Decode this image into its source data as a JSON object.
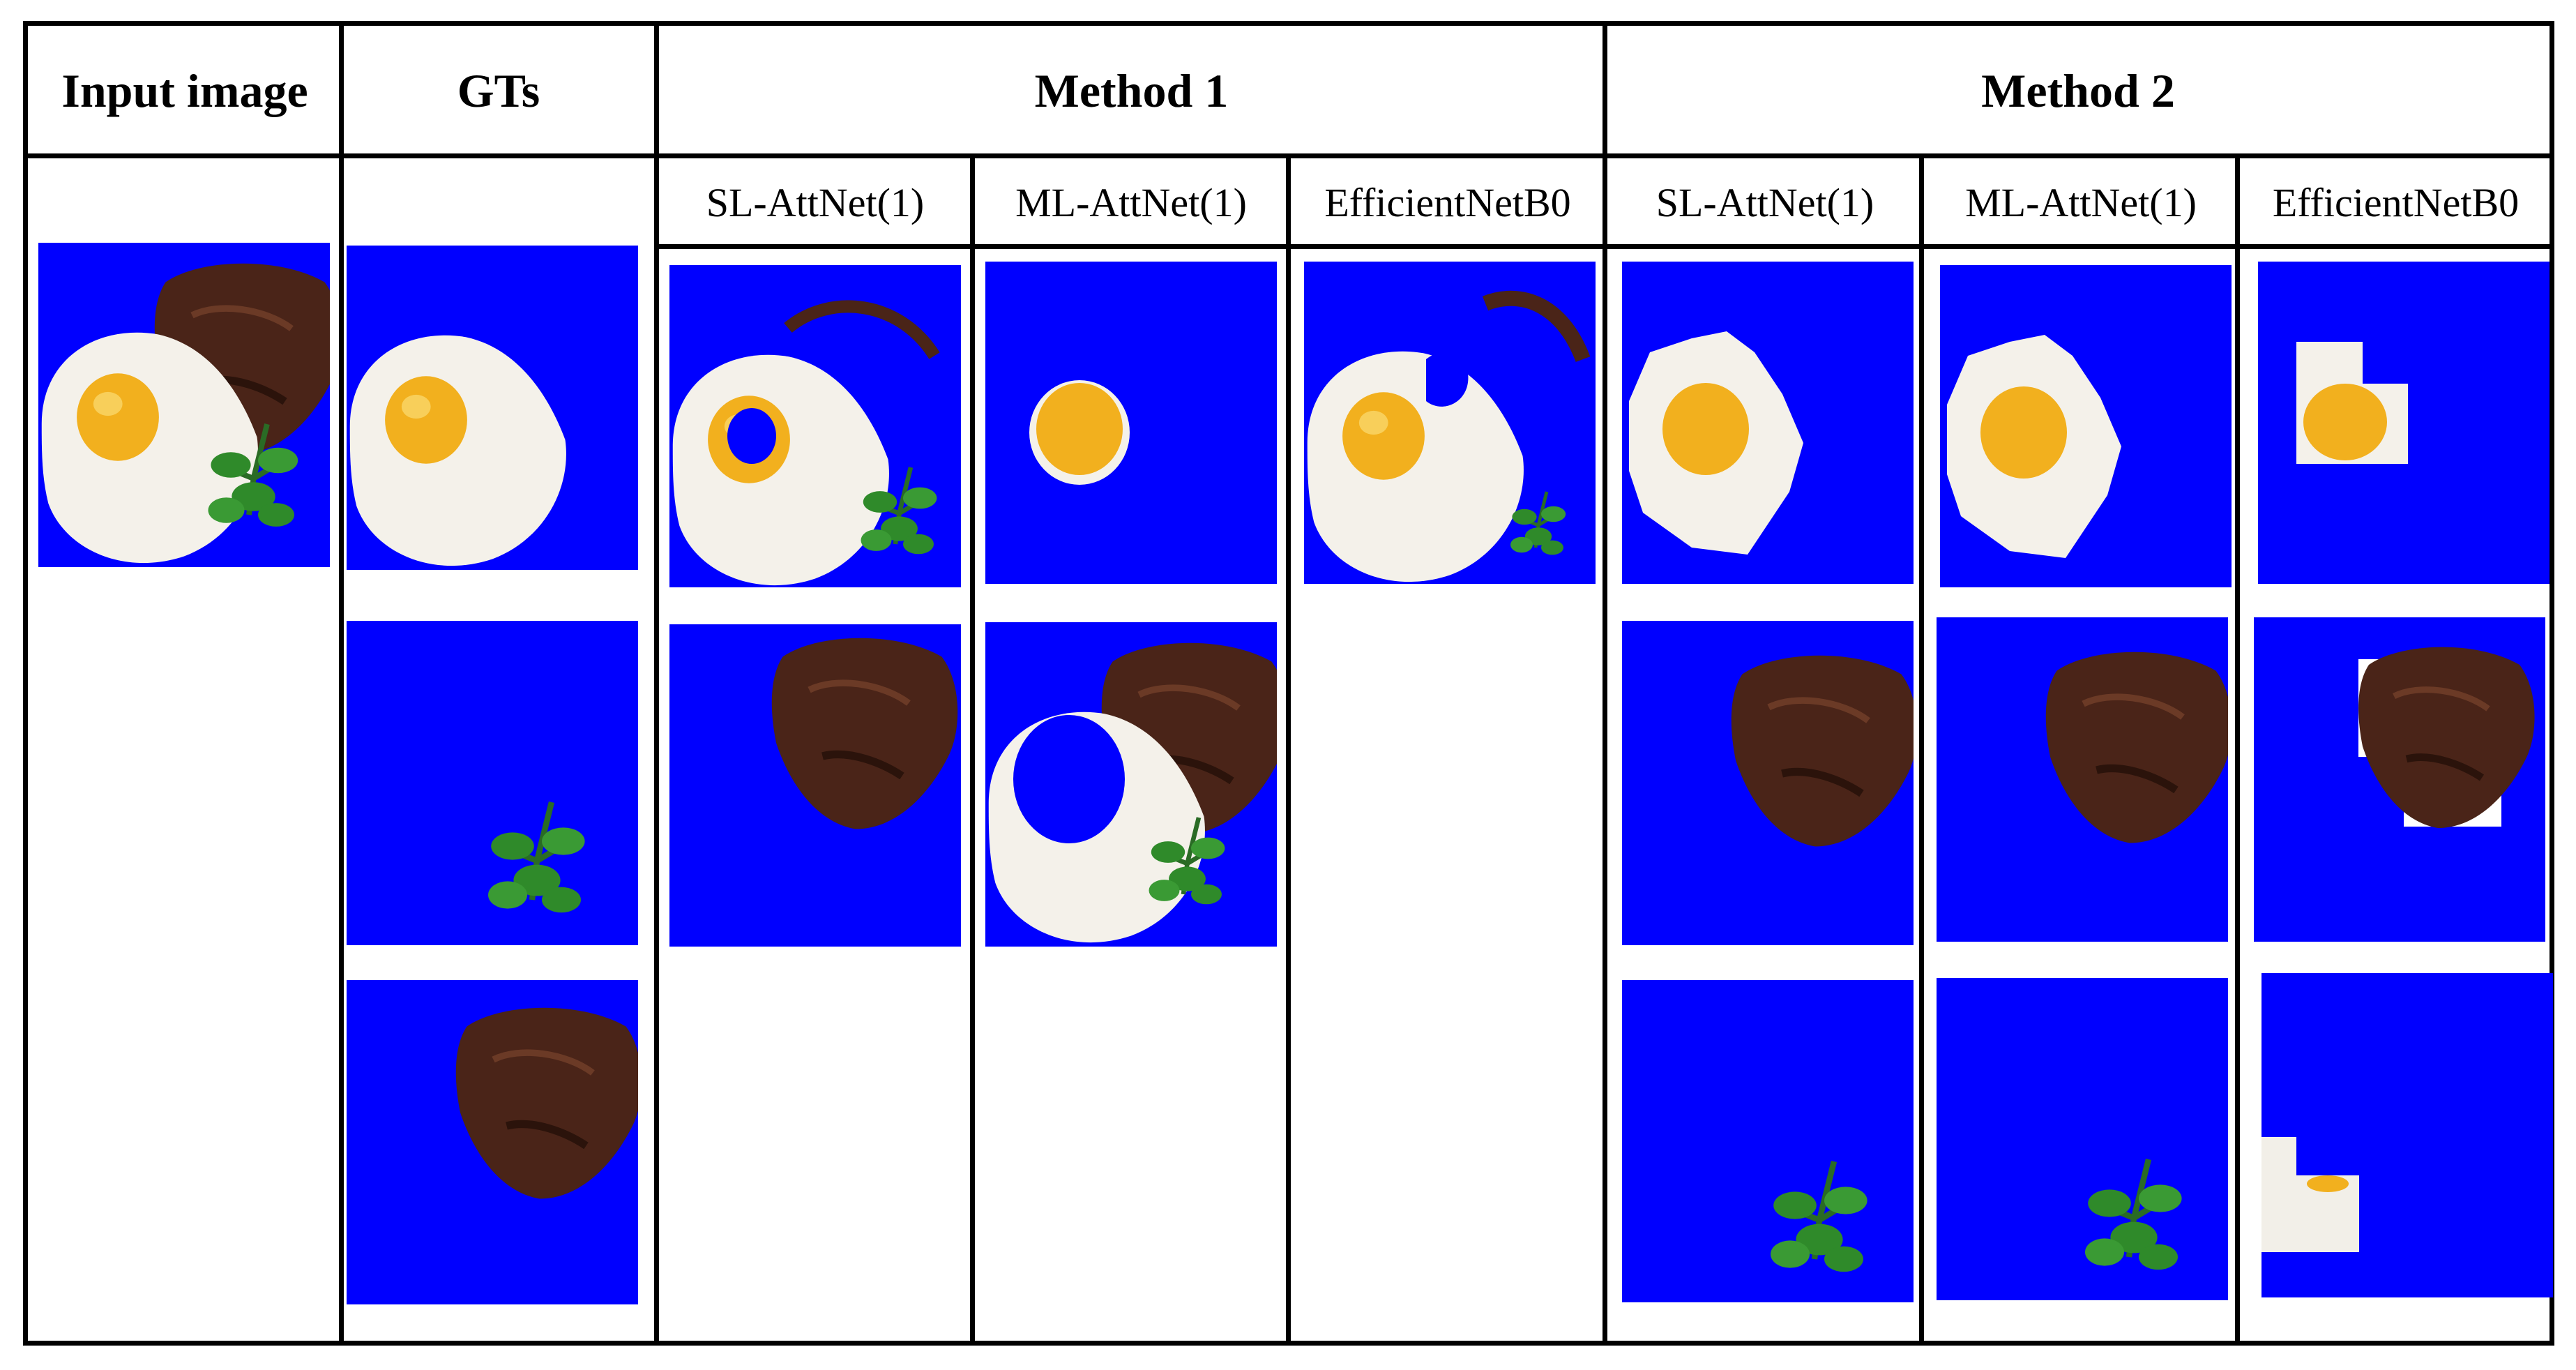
{
  "headers": {
    "input_image": "Input image",
    "gts": "GTs",
    "method1": "Method 1",
    "method2": "Method 2"
  },
  "subheaders": {
    "m1_sl": "SL-AttNet(1)",
    "m1_ml": "ML-AttNet(1)",
    "m1_eff": "EfficientNetB0",
    "m2_sl": "SL-AttNet(1)",
    "m2_ml": "ML-AttNet(1)",
    "m2_eff": "EfficientNetB0"
  },
  "colors": {
    "mask_background": "#0000ff",
    "egg_white": "#f4f1ea",
    "egg_yolk": "#f2b01e",
    "meat": "#4a2418",
    "parsley": "#2f8a2a"
  }
}
